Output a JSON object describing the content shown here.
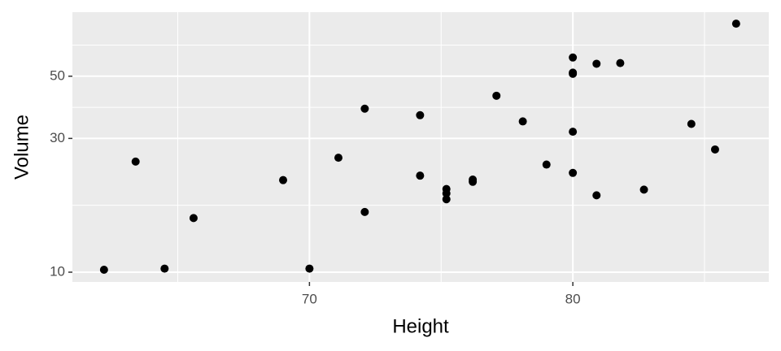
{
  "chart_data": {
    "type": "scatter",
    "x_label": "Height",
    "y_label": "Volume",
    "x": [
      62.2,
      63.4,
      64.5,
      65.6,
      69.0,
      70.0,
      71.1,
      72.1,
      72.1,
      74.2,
      74.2,
      75.2,
      75.2,
      75.2,
      76.2,
      76.2,
      77.1,
      78.1,
      79.0,
      80.0,
      80.0,
      80.0,
      80.0,
      80.0,
      80.9,
      80.9,
      81.8,
      82.7,
      84.5,
      85.4,
      86.2
    ],
    "values": [
      10.2,
      24.8,
      10.3,
      15.6,
      21.3,
      10.3,
      25.6,
      16.4,
      38.3,
      36.3,
      22.1,
      19.8,
      18.2,
      19.1,
      21.4,
      21.0,
      42.6,
      34.5,
      24.2,
      58.3,
      51.5,
      51.0,
      31.7,
      22.6,
      55.4,
      18.8,
      55.7,
      19.7,
      33.8,
      27.4,
      77.0
    ],
    "color": "#000000",
    "xlim": [
      61.0,
      87.44
    ],
    "xticks": [
      70,
      80
    ],
    "ylim": [
      9.23,
      84.6
    ],
    "yticks": [
      10,
      30,
      50
    ],
    "y_log": true,
    "grid": true
  }
}
